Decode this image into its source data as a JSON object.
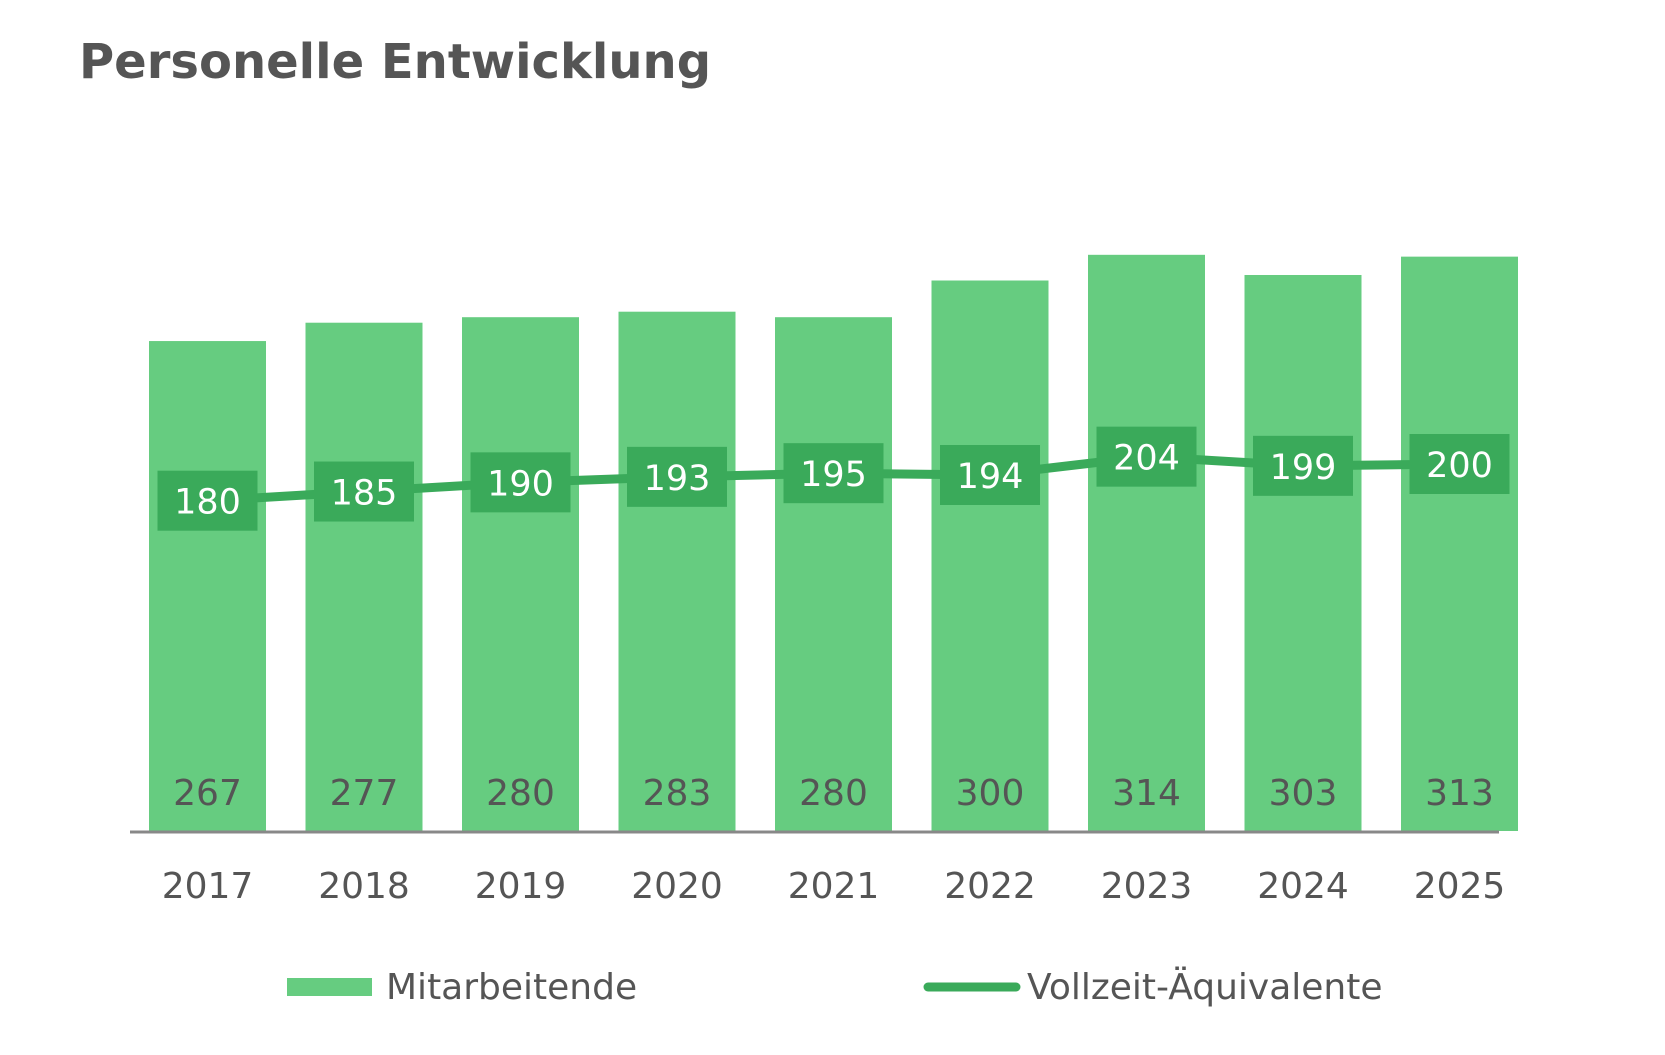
{
  "chart_data": {
    "type": "bar",
    "title": "Personelle Entwicklung",
    "categories": [
      "2017",
      "2018",
      "2019",
      "2020",
      "2021",
      "2022",
      "2023",
      "2024",
      "2025"
    ],
    "series": [
      {
        "name": "Mitarbeitende",
        "type": "bar",
        "color": "#66cc80",
        "values": [
          267,
          277,
          280,
          283,
          280,
          300,
          314,
          303,
          313
        ]
      },
      {
        "name": "Vollzeit-Äquivalente",
        "type": "line",
        "color": "#3aaa5a",
        "values": [
          180,
          185,
          190,
          193,
          195,
          194,
          204,
          199,
          200
        ]
      }
    ],
    "xlabel": "",
    "ylabel": "",
    "ylim": [
      0,
      450
    ],
    "grid": false,
    "legend": "bottom",
    "axis_color": "#888888"
  }
}
